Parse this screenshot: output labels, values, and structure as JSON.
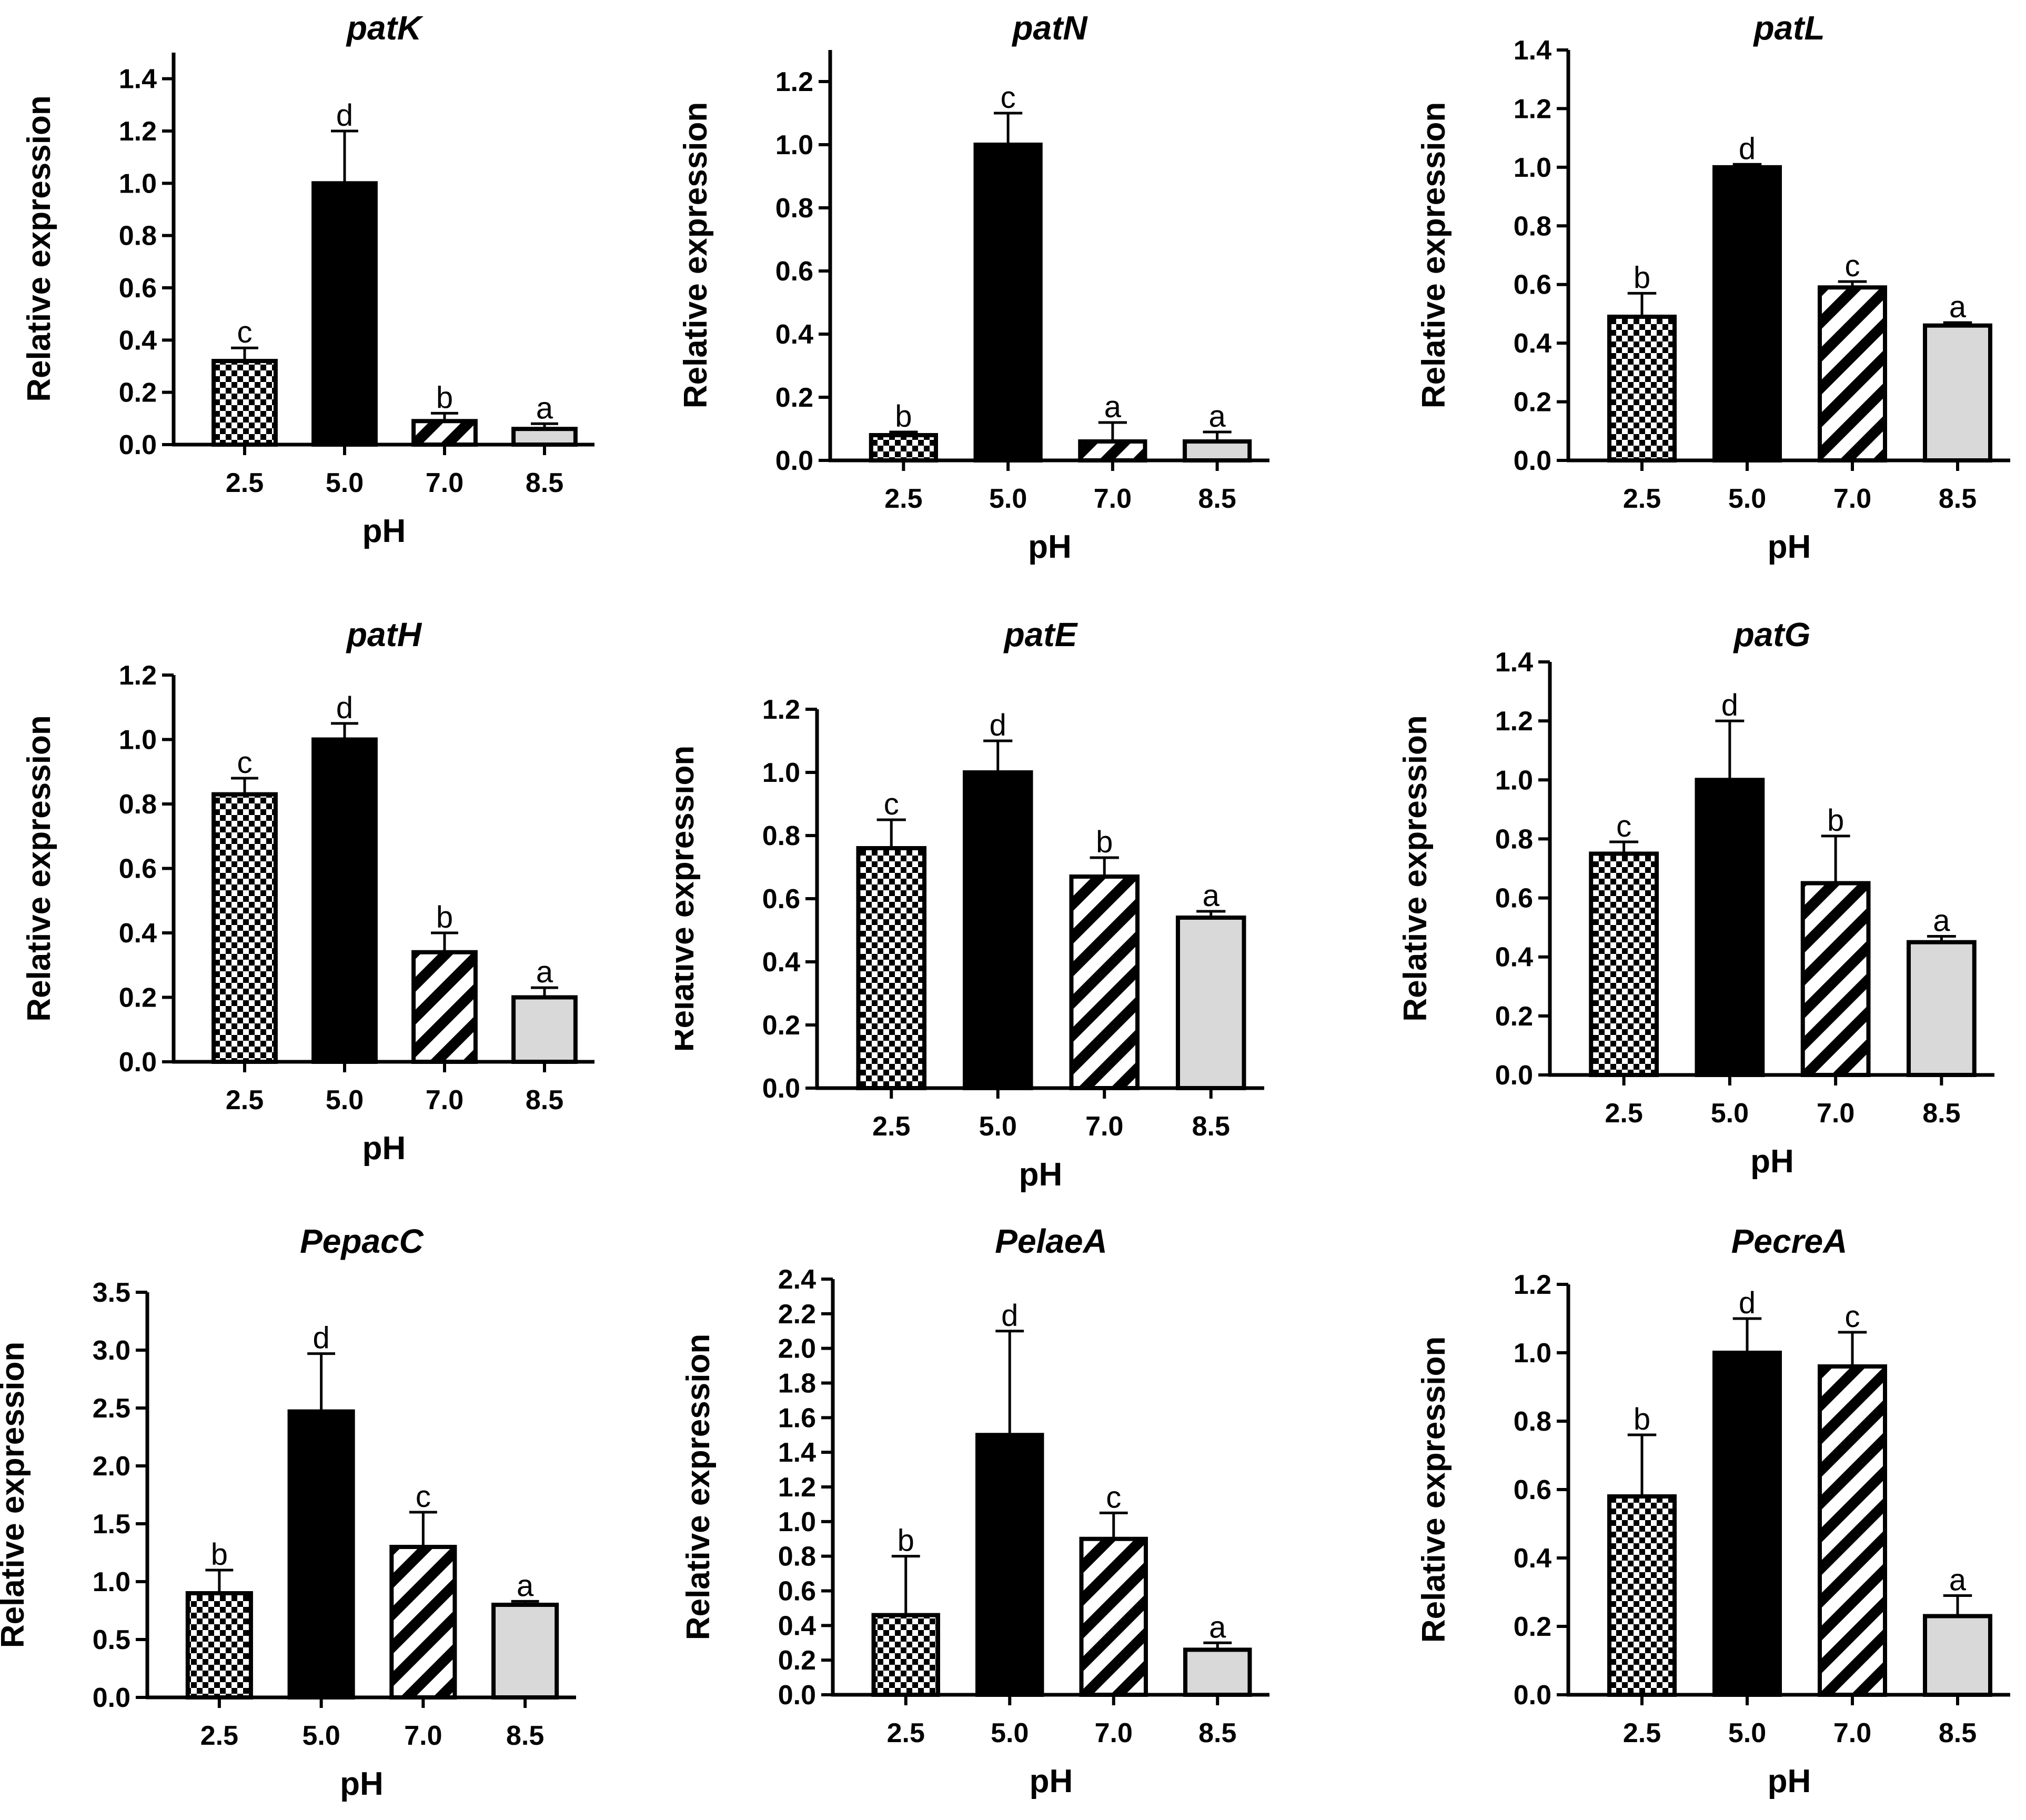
{
  "figure": {
    "colors": {
      "ink": "#000000",
      "light_gray": "#d9d9d9",
      "background": "#ffffff"
    },
    "fill_patterns": {
      "2.5": "checkerboard",
      "5.0": "solid-black",
      "7.0": "diagonal-stripes",
      "8.5": "light-gray"
    }
  },
  "chart_data": [
    {
      "id": "patK",
      "type": "bar",
      "title": "patK",
      "xlabel": "pH",
      "ylabel": "Relative expression",
      "categories": [
        "2.5",
        "5.0",
        "7.0",
        "8.5"
      ],
      "values": [
        0.32,
        1.0,
        0.09,
        0.06
      ],
      "errors": [
        0.05,
        0.2,
        0.03,
        0.02
      ],
      "significance": [
        "c",
        "d",
        "b",
        "a"
      ],
      "ylim": [
        0,
        1.5
      ],
      "yticks": [
        "0.0",
        "0.2",
        "0.4",
        "0.6",
        "0.8",
        "1.0",
        "1.2",
        "1.4"
      ]
    },
    {
      "id": "patN",
      "type": "bar",
      "title": "patN",
      "xlabel": "pH",
      "ylabel": "Relative expression",
      "categories": [
        "2.5",
        "5.0",
        "7.0",
        "8.5"
      ],
      "values": [
        0.08,
        1.0,
        0.06,
        0.06
      ],
      "errors": [
        0.01,
        0.1,
        0.06,
        0.03
      ],
      "significance": [
        "b",
        "c",
        "a",
        "a"
      ],
      "ylim": [
        0,
        1.3
      ],
      "yticks": [
        "0.0",
        "0.2",
        "0.4",
        "0.6",
        "0.8",
        "1.0",
        "1.2"
      ]
    },
    {
      "id": "patL",
      "type": "bar",
      "title": "patL",
      "xlabel": "pH",
      "ylabel": "Relative expression",
      "categories": [
        "2.5",
        "5.0",
        "7.0",
        "8.5"
      ],
      "values": [
        0.49,
        1.0,
        0.59,
        0.46
      ],
      "errors": [
        0.08,
        0.01,
        0.02,
        0.01
      ],
      "significance": [
        "b",
        "d",
        "c",
        "a"
      ],
      "ylim": [
        0,
        1.4
      ],
      "yticks": [
        "0.0",
        "0.2",
        "0.4",
        "0.6",
        "0.8",
        "1.0",
        "1.2",
        "1.4"
      ]
    },
    {
      "id": "patH",
      "type": "bar",
      "title": "patH",
      "xlabel": "pH",
      "ylabel": "Relative expression",
      "categories": [
        "2.5",
        "5.0",
        "7.0",
        "8.5"
      ],
      "values": [
        0.83,
        1.0,
        0.34,
        0.2
      ],
      "errors": [
        0.05,
        0.05,
        0.06,
        0.03
      ],
      "significance": [
        "c",
        "d",
        "b",
        "a"
      ],
      "ylim": [
        0,
        1.2
      ],
      "yticks": [
        "0.0",
        "0.2",
        "0.4",
        "0.6",
        "0.8",
        "1.0",
        "1.2"
      ]
    },
    {
      "id": "patE",
      "type": "bar",
      "title": "patE",
      "xlabel": "pH",
      "ylabel": "Relative expression",
      "categories": [
        "2.5",
        "5.0",
        "7.0",
        "8.5"
      ],
      "values": [
        0.76,
        1.0,
        0.67,
        0.54
      ],
      "errors": [
        0.09,
        0.1,
        0.06,
        0.02
      ],
      "significance": [
        "c",
        "d",
        "b",
        "a"
      ],
      "ylim": [
        0,
        1.2
      ],
      "yticks": [
        "0.0",
        "0.2",
        "0.4",
        "0.6",
        "0.8",
        "1.0",
        "1.2"
      ]
    },
    {
      "id": "patG",
      "type": "bar",
      "title": "patG",
      "xlabel": "pH",
      "ylabel": "Relative expression",
      "categories": [
        "2.5",
        "5.0",
        "7.0",
        "8.5"
      ],
      "values": [
        0.75,
        1.0,
        0.65,
        0.45
      ],
      "errors": [
        0.04,
        0.2,
        0.16,
        0.02
      ],
      "significance": [
        "c",
        "d",
        "b",
        "a"
      ],
      "ylim": [
        0,
        1.4
      ],
      "yticks": [
        "0.0",
        "0.2",
        "0.4",
        "0.6",
        "0.8",
        "1.0",
        "1.2",
        "1.4"
      ]
    },
    {
      "id": "PepacC",
      "type": "bar",
      "title": "PepacC",
      "xlabel": "pH",
      "ylabel": "Relative expression",
      "categories": [
        "2.5",
        "5.0",
        "7.0",
        "8.5"
      ],
      "values": [
        0.9,
        2.47,
        1.3,
        0.8
      ],
      "errors": [
        0.2,
        0.5,
        0.3,
        0.03
      ],
      "significance": [
        "b",
        "d",
        "c",
        "a"
      ],
      "ylim": [
        0,
        3.5
      ],
      "yticks": [
        "0.0",
        "0.5",
        "1.0",
        "1.5",
        "2.0",
        "2.5",
        "3.0",
        "3.5"
      ]
    },
    {
      "id": "PelaeA",
      "type": "bar",
      "title": "PelaeA",
      "xlabel": "pH",
      "ylabel": "Relative expression",
      "categories": [
        "2.5",
        "5.0",
        "7.0",
        "8.5"
      ],
      "values": [
        0.46,
        1.5,
        0.9,
        0.26
      ],
      "errors": [
        0.34,
        0.6,
        0.15,
        0.04
      ],
      "significance": [
        "b",
        "d",
        "c",
        "a"
      ],
      "ylim": [
        0,
        2.4
      ],
      "yticks": [
        "0.0",
        "0.2",
        "0.4",
        "0.6",
        "0.8",
        "1.0",
        "1.2",
        "1.4",
        "1.6",
        "1.8",
        "2.0",
        "2.2",
        "2.4"
      ]
    },
    {
      "id": "PecreA",
      "type": "bar",
      "title": "PecreA",
      "xlabel": "pH",
      "ylabel": "Relative expression",
      "categories": [
        "2.5",
        "5.0",
        "7.0",
        "8.5"
      ],
      "values": [
        0.58,
        1.0,
        0.96,
        0.23
      ],
      "errors": [
        0.18,
        0.1,
        0.1,
        0.06
      ],
      "significance": [
        "b",
        "d",
        "c",
        "a"
      ],
      "ylim": [
        0,
        1.2
      ],
      "yticks": [
        "0.0",
        "0.2",
        "0.4",
        "0.6",
        "0.8",
        "1.0",
        "1.2"
      ]
    }
  ]
}
